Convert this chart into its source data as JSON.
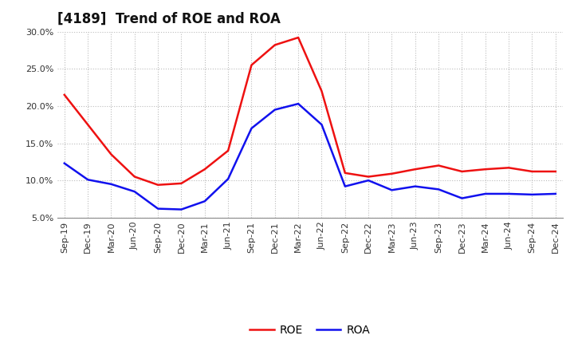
{
  "title": "[4189]  Trend of ROE and ROA",
  "labels": [
    "Sep-19",
    "Dec-19",
    "Mar-20",
    "Jun-20",
    "Sep-20",
    "Dec-20",
    "Mar-21",
    "Jun-21",
    "Sep-21",
    "Dec-21",
    "Mar-22",
    "Jun-22",
    "Sep-22",
    "Dec-22",
    "Mar-23",
    "Jun-23",
    "Sep-23",
    "Dec-23",
    "Mar-24",
    "Jun-24",
    "Sep-24",
    "Dec-24"
  ],
  "ROE": [
    21.5,
    17.5,
    13.5,
    10.5,
    9.4,
    9.6,
    11.5,
    14.0,
    25.5,
    28.2,
    29.2,
    22.0,
    11.0,
    10.5,
    10.9,
    11.5,
    12.0,
    11.2,
    11.5,
    11.7,
    11.2,
    11.2
  ],
  "ROA": [
    12.3,
    10.1,
    9.5,
    8.5,
    6.2,
    6.1,
    7.2,
    10.2,
    17.0,
    19.5,
    20.3,
    17.5,
    9.2,
    10.0,
    8.7,
    9.2,
    8.8,
    7.6,
    8.2,
    8.2,
    8.1,
    8.2
  ],
  "roe_color": "#ee1111",
  "roa_color": "#1111ee",
  "ylim_min": 5.0,
  "ylim_max": 30.0,
  "yticks": [
    5.0,
    10.0,
    15.0,
    20.0,
    25.0,
    30.0
  ],
  "background_color": "#ffffff",
  "grid_color": "#bbbbbb",
  "title_fontsize": 12,
  "axis_fontsize": 8,
  "legend_fontsize": 10
}
